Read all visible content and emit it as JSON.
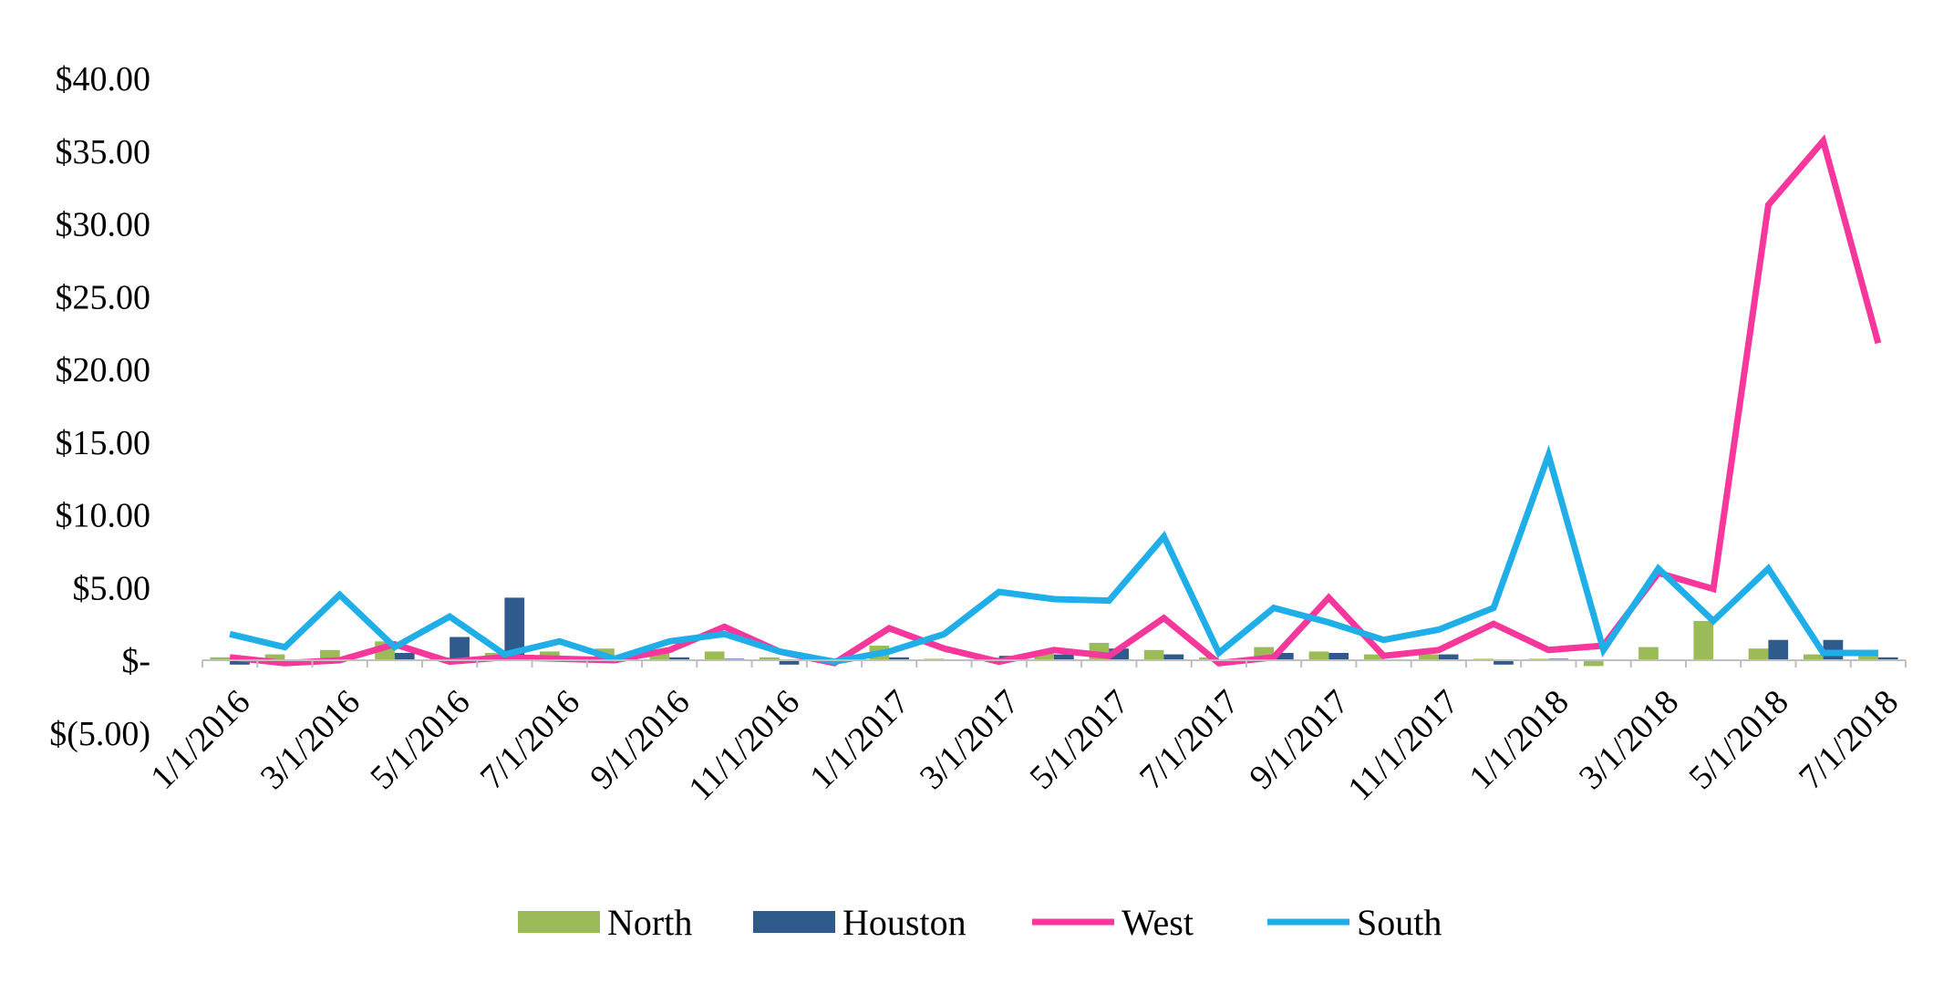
{
  "chart_data": {
    "type": "bar+line",
    "title": "",
    "xlabel": "",
    "ylabel": "",
    "ylim": [
      -5,
      40
    ],
    "y_ticks": [
      {
        "value": 40,
        "label": "$40.00"
      },
      {
        "value": 35,
        "label": "$35.00"
      },
      {
        "value": 30,
        "label": "$30.00"
      },
      {
        "value": 25,
        "label": "$25.00"
      },
      {
        "value": 20,
        "label": "$20.00"
      },
      {
        "value": 15,
        "label": "$15.00"
      },
      {
        "value": 10,
        "label": "$10.00"
      },
      {
        "value": 5,
        "label": "$5.00"
      },
      {
        "value": 0,
        "label": "$-"
      },
      {
        "value": -5,
        "label": "$(5.00)"
      }
    ],
    "categories": [
      "1/1/2016",
      "2/1/2016",
      "3/1/2016",
      "4/1/2016",
      "5/1/2016",
      "6/1/2016",
      "7/1/2016",
      "8/1/2016",
      "9/1/2016",
      "10/1/2016",
      "11/1/2016",
      "12/1/2016",
      "1/1/2017",
      "2/1/2017",
      "3/1/2017",
      "4/1/2017",
      "5/1/2017",
      "6/1/2017",
      "7/1/2017",
      "8/1/2017",
      "9/1/2017",
      "10/1/2017",
      "11/1/2017",
      "12/1/2017",
      "1/1/2018",
      "2/1/2018",
      "3/1/2018",
      "4/1/2018",
      "5/1/2018",
      "6/1/2018",
      "7/1/2018"
    ],
    "x_tick_labels": [
      "1/1/2016",
      "3/1/2016",
      "5/1/2016",
      "7/1/2016",
      "9/1/2016",
      "11/1/2016",
      "1/1/2017",
      "3/1/2017",
      "5/1/2017",
      "7/1/2017",
      "9/1/2017",
      "11/1/2017",
      "1/1/2018",
      "3/1/2018",
      "5/1/2018",
      "7/1/2018"
    ],
    "grid": false,
    "legend_position": "bottom",
    "series": [
      {
        "name": "North",
        "kind": "bar",
        "color": "#9BBB59",
        "values": [
          0.2,
          0.4,
          0.7,
          1.3,
          0.2,
          0.5,
          0.6,
          0.8,
          0.5,
          0.6,
          0.2,
          0.1,
          1.0,
          0.1,
          0.2,
          0.6,
          1.2,
          0.7,
          0.2,
          0.9,
          0.6,
          0.4,
          0.4,
          0.1,
          0.1,
          -0.4,
          0.9,
          2.7,
          0.8,
          0.4,
          0.3
        ]
      },
      {
        "name": "Houston",
        "kind": "bar",
        "color": "#2F5A8C",
        "values": [
          -0.3,
          0.0,
          0.0,
          0.5,
          1.6,
          4.3,
          0.1,
          0.2,
          0.2,
          0.1,
          -0.3,
          0.0,
          0.2,
          0.0,
          0.3,
          0.4,
          0.8,
          0.4,
          0.0,
          0.5,
          0.5,
          0.0,
          0.4,
          -0.3,
          0.1,
          0.0,
          0.0,
          0.0,
          1.4,
          1.4,
          0.2
        ]
      },
      {
        "name": "West",
        "kind": "line",
        "color": "#F7379B",
        "values": [
          0.2,
          -0.2,
          0.0,
          1.1,
          -0.1,
          0.2,
          0.1,
          0.0,
          0.7,
          2.3,
          0.6,
          -0.2,
          2.2,
          0.8,
          -0.1,
          0.7,
          0.3,
          2.9,
          -0.2,
          0.2,
          4.3,
          0.3,
          0.7,
          2.5,
          0.7,
          1.0,
          6.0,
          4.9,
          31.3,
          35.7,
          21.8
        ]
      },
      {
        "name": "South",
        "kind": "line",
        "color": "#1FAEE8",
        "values": [
          1.8,
          0.9,
          4.5,
          0.9,
          3.0,
          0.4,
          1.3,
          0.1,
          1.3,
          1.8,
          0.6,
          -0.1,
          0.6,
          1.8,
          4.7,
          4.2,
          4.1,
          8.5,
          0.5,
          3.6,
          2.6,
          1.4,
          2.1,
          3.6,
          14.1,
          0.7,
          6.3,
          2.7,
          6.3,
          0.5,
          0.5
        ]
      }
    ]
  }
}
